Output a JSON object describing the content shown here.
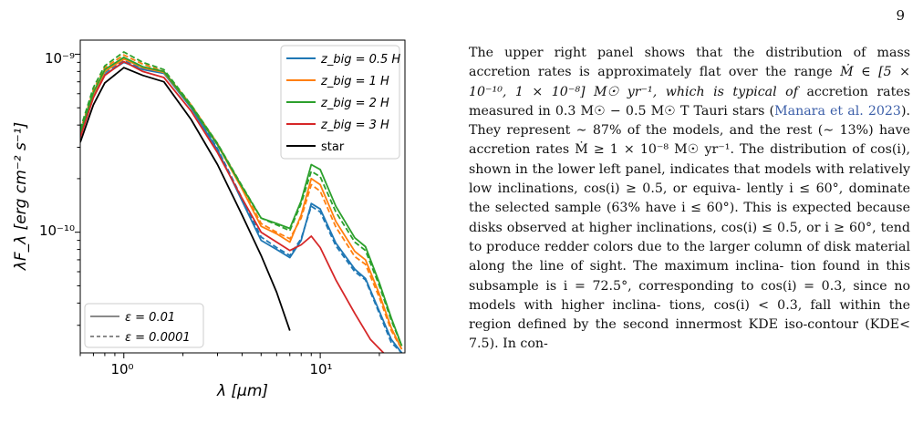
{
  "page_number": "9",
  "figure": {
    "xlabel": "λ [μm]",
    "ylabel": "λF_λ [erg cm⁻² s⁻¹]",
    "x_ticks": [
      "10⁰",
      "10¹"
    ],
    "y_ticks": [
      "10⁻⁹",
      "10⁻¹⁰"
    ],
    "legend_models": [
      "z_big = 0.5 H",
      "z_big = 1 H",
      "z_big = 2 H",
      "z_big = 3 H",
      "star"
    ],
    "legend_eps": [
      "ε = 0.01",
      "ε = 0.0001"
    ],
    "colors": {
      "z05": "#1f77b4",
      "z1": "#ff7f0e",
      "z2": "#2ca02c",
      "z3": "#d62728",
      "star": "#000000"
    }
  },
  "chart_data": {
    "type": "line",
    "xscale": "log",
    "yscale": "log",
    "xlim": [
      0.6,
      27
    ],
    "ylim": [
      2.1e-11,
      1.2e-09
    ],
    "xlabel": "λ [μm]",
    "ylabel": "λF_λ [erg cm⁻² s⁻¹]",
    "legend_placement": "top-right and bottom-left",
    "series": [
      {
        "name": "star",
        "color": "#000000",
        "x": [
          0.6,
          0.7,
          0.8,
          1.0,
          1.25,
          1.6,
          2.2,
          3.0,
          4.0,
          5.0,
          6.0,
          7.0
        ],
        "y": [
          3.2e-10,
          5.2e-10,
          6.9e-10,
          8.4e-10,
          7.6e-10,
          7e-10,
          4.3e-10,
          2.4e-10,
          1.25e-10,
          7.4e-11,
          4.6e-11,
          2.8e-11
        ]
      },
      {
        "name": "z_big = 0.5 H (ε = 0.01)",
        "color": "#1f77b4",
        "x": [
          0.6,
          0.7,
          0.8,
          1.0,
          1.25,
          1.6,
          2.2,
          3.0,
          4.0,
          5.0,
          6.0,
          7.0,
          8.0,
          9.0,
          10.0,
          12.0,
          15.0,
          17.0,
          20.0,
          23.0,
          26.0
        ],
        "y": [
          3.5e-10,
          5.8e-10,
          7.7e-10,
          9e-10,
          8.2e-10,
          7.8e-10,
          5e-10,
          2.9e-10,
          1.5e-10,
          9e-11,
          8e-11,
          7.2e-11,
          9e-11,
          1.45e-10,
          1.35e-10,
          8.7e-11,
          6.2e-11,
          5.5e-11,
          3.6e-11,
          2.5e-11,
          2.1e-11
        ]
      },
      {
        "name": "z_big = 0.5 H (ε = 0.0001)",
        "color": "#1f77b4",
        "x": [
          0.6,
          0.7,
          0.8,
          1.0,
          1.25,
          1.6,
          2.2,
          3.0,
          4.0,
          5.0,
          6.0,
          7.0,
          8.0,
          9.0,
          10.0,
          12.0,
          15.0,
          17.0,
          20.0,
          23.0,
          26.0
        ],
        "y": [
          3.6e-10,
          5.9e-10,
          7.9e-10,
          9.2e-10,
          8.3e-10,
          7.9e-10,
          5.1e-10,
          2.95e-10,
          1.55e-10,
          9.4e-11,
          8.2e-11,
          7.4e-11,
          9.2e-11,
          1.4e-10,
          1.3e-10,
          8.4e-11,
          6e-11,
          5.4e-11,
          3.5e-11,
          2.4e-11,
          2.1e-11
        ]
      },
      {
        "name": "z_big = 1 H (ε = 0.01)",
        "color": "#ff7f0e",
        "x": [
          0.6,
          0.7,
          0.8,
          1.0,
          1.25,
          1.6,
          2.2,
          3.0,
          4.0,
          5.0,
          6.0,
          7.0,
          8.0,
          9.0,
          10.0,
          12.0,
          15.0,
          17.0,
          20.0,
          23.0,
          26.0
        ],
        "y": [
          3.6e-10,
          6e-10,
          8e-10,
          9.4e-10,
          8.4e-10,
          7.9e-10,
          5.1e-10,
          3.1e-10,
          1.75e-10,
          1.08e-10,
          9.8e-11,
          8.8e-11,
          1.25e-10,
          2e-10,
          1.85e-10,
          1.15e-10,
          7.8e-11,
          7e-11,
          4.5e-11,
          2.9e-11,
          2.2e-11
        ]
      },
      {
        "name": "z_big = 1 H (ε = 0.0001)",
        "color": "#ff7f0e",
        "x": [
          0.6,
          0.7,
          0.8,
          1.0,
          1.25,
          1.6,
          2.2,
          3.0,
          4.0,
          5.0,
          6.0,
          7.0,
          8.0,
          9.0,
          10.0,
          12.0,
          15.0,
          17.0,
          20.0,
          23.0,
          26.0
        ],
        "y": [
          3.7e-10,
          6.3e-10,
          8.4e-10,
          9.9e-10,
          8.8e-10,
          8e-10,
          5.2e-10,
          3.15e-10,
          1.8e-10,
          1.12e-10,
          1e-10,
          9.2e-11,
          1.2e-10,
          1.85e-10,
          1.7e-10,
          1.07e-10,
          7.3e-11,
          6.6e-11,
          4.3e-11,
          2.8e-11,
          2.2e-11
        ]
      },
      {
        "name": "z_big = 2 H (ε = 0.01)",
        "color": "#2ca02c",
        "x": [
          0.6,
          0.7,
          0.8,
          1.0,
          1.25,
          1.6,
          2.2,
          3.0,
          4.0,
          5.0,
          6.0,
          7.0,
          8.0,
          9.0,
          10.0,
          12.0,
          15.0,
          17.0,
          20.0,
          23.0,
          26.0
        ],
        "y": [
          3.6e-10,
          6.1e-10,
          8.2e-10,
          9.6e-10,
          8.5e-10,
          8e-10,
          5.1e-10,
          3.1e-10,
          1.8e-10,
          1.2e-10,
          1.12e-10,
          1.05e-10,
          1.5e-10,
          2.4e-10,
          2.25e-10,
          1.4e-10,
          9.3e-11,
          8.3e-11,
          5.2e-11,
          3.3e-11,
          2.3e-11
        ]
      },
      {
        "name": "z_big = 2 H (ε = 0.0001)",
        "color": "#2ca02c",
        "x": [
          0.6,
          0.7,
          0.8,
          1.0,
          1.25,
          1.6,
          2.2,
          3.0,
          4.0,
          5.0,
          6.0,
          7.0,
          8.0,
          9.0,
          10.0,
          12.0,
          15.0,
          17.0,
          20.0,
          23.0,
          26.0
        ],
        "y": [
          3.8e-10,
          6.5e-10,
          8.6e-10,
          1.03e-09,
          9e-10,
          8.2e-10,
          5.2e-10,
          3.15e-10,
          1.82e-10,
          1.2e-10,
          1.1e-10,
          1.02e-10,
          1.45e-10,
          2.2e-10,
          2.05e-10,
          1.3e-10,
          8.8e-11,
          7.9e-11,
          5e-11,
          3.2e-11,
          2.3e-11
        ]
      },
      {
        "name": "z_big = 3 H (ε = 0.01)",
        "color": "#d62728",
        "x": [
          0.6,
          0.7,
          0.8,
          1.0,
          1.25,
          1.6,
          2.2,
          3.0,
          4.0,
          5.0,
          6.0,
          7.0,
          8.0,
          9.0,
          10.0,
          12.0,
          15.0,
          18.0,
          21.0
        ],
        "y": [
          3.4e-10,
          5.7e-10,
          7.6e-10,
          9.1e-10,
          8e-10,
          7.4e-10,
          4.8e-10,
          2.8e-10,
          1.55e-10,
          1e-10,
          8.8e-11,
          7.9e-11,
          8.5e-11,
          9.5e-11,
          8.2e-11,
          5.4e-11,
          3.5e-11,
          2.5e-11,
          2.1e-11
        ]
      }
    ]
  },
  "text_lines": [
    "The upper right panel shows that the distribution of",
    "mass accretion rates is approximately flat over the range",
    "Ṁ ∈ [5 × 10⁻¹⁰, 1 × 10⁻⁸] M☉ yr⁻¹, which is typical of",
    "accretion rates measured in 0.3 M☉ − 0.5 M☉ T Tauri",
    "stars (",
    "Manara et al. 2023",
    "). They represent ∼ 87% of",
    "the models, and the rest (∼ 13%) have accretion rates",
    "Ṁ ≥ 1 × 10⁻⁸ M☉ yr⁻¹. The distribution of cos(i),",
    "shown in the lower left panel, indicates that models",
    "with relatively low inclinations, cos(i) ≥ 0.5, or equiva-",
    "lently i ≤ 60°, dominate the selected sample (63% have",
    "i ≤ 60°). This is expected because disks observed at",
    "higher inclinations, cos(i) ≤ 0.5, or i ≥ 60°, tend to",
    "produce redder colors due to the larger column of disk",
    "material along the line of sight. The maximum inclina-",
    "tion found in this subsample is i = 72.5°, corresponding",
    "to cos(i) = 0.3, since no models with higher inclina-",
    "tions, cos(i) < 0.3, fall within the region defined by the",
    "second innermost KDE iso-contour (KDE< 7.5). In con-"
  ]
}
